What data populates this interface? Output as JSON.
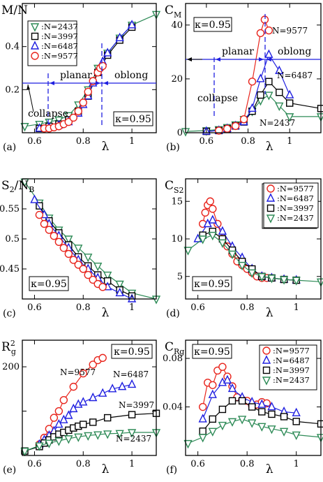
{
  "colors": {
    "2437": "#2e8b57",
    "3997": "#000000",
    "6487": "#1f1fe0",
    "9577": "#e8241c",
    "guide": "#1f1fe0"
  },
  "chart_data": [
    {
      "id": "a",
      "type": "line",
      "panel_label": "(a)",
      "ylabel": "M/N",
      "xlabel": "λ",
      "xlim": [
        0.55,
        1.1
      ],
      "ylim": [
        0.0,
        0.6
      ],
      "xticks": [
        0.6,
        0.8,
        1.0
      ],
      "xticklabels": [
        "0.6",
        "0.8",
        "1"
      ],
      "yticks": [
        0.2,
        0.4
      ],
      "yticklabels": [
        "0.2",
        "0.4"
      ],
      "legend": {
        "position": "top-left",
        "entries": [
          ":N=2437",
          ":N=3997",
          ":N=6487",
          ":N=9577"
        ]
      },
      "annotations": [
        "κ=0.95",
        "planar",
        "oblong",
        "collapse"
      ],
      "series": [
        {
          "name": "N=2437",
          "marker": "tri-down",
          "x": [
            0.56,
            0.62,
            0.66,
            0.7,
            0.74,
            0.78,
            0.82,
            0.86,
            0.9,
            0.95,
            1.0,
            1.1
          ],
          "y": [
            0.03,
            0.04,
            0.05,
            0.06,
            0.08,
            0.13,
            0.2,
            0.3,
            0.37,
            0.44,
            0.5,
            0.55
          ]
        },
        {
          "name": "N=3997",
          "marker": "square",
          "x": [
            0.62,
            0.66,
            0.7,
            0.74,
            0.78,
            0.82,
            0.86,
            0.9,
            0.95,
            1.0
          ],
          "y": [
            0.02,
            0.03,
            0.04,
            0.06,
            0.1,
            0.17,
            0.28,
            0.36,
            0.43,
            0.49
          ]
        },
        {
          "name": "N=6487",
          "marker": "tri-up",
          "x": [
            0.62,
            0.66,
            0.7,
            0.74,
            0.78,
            0.8,
            0.82,
            0.84,
            0.86,
            0.88,
            0.9,
            0.95,
            1.0
          ],
          "y": [
            0.02,
            0.025,
            0.035,
            0.05,
            0.09,
            0.13,
            0.17,
            0.23,
            0.29,
            0.33,
            0.37,
            0.44,
            0.5
          ]
        },
        {
          "name": "N=9577",
          "marker": "circle",
          "x": [
            0.64,
            0.66,
            0.68,
            0.7,
            0.72,
            0.74,
            0.76,
            0.78,
            0.8,
            0.82,
            0.84,
            0.86,
            0.87,
            0.88
          ],
          "y": [
            0.02,
            0.02,
            0.025,
            0.03,
            0.04,
            0.05,
            0.07,
            0.1,
            0.14,
            0.19,
            0.24,
            0.28,
            0.3,
            0.31
          ]
        }
      ]
    },
    {
      "id": "b",
      "type": "line",
      "panel_label": "(b)",
      "ylabel": "C_M",
      "xlabel": "λ",
      "xlim": [
        0.5,
        1.15
      ],
      "ylim": [
        0,
        48
      ],
      "xticks": [
        0.6,
        0.8,
        1.0
      ],
      "xticklabels": [
        "0.6",
        "0.8",
        "1"
      ],
      "yticks": [
        0,
        20,
        40
      ],
      "yticklabels": [
        "0",
        "20",
        "40"
      ],
      "annotations": [
        "κ=0.95",
        "N=9577",
        "planar",
        "oblong",
        "collapse",
        "N=6487",
        "N=2437"
      ],
      "series": [
        {
          "name": "N=2437",
          "marker": "tri-down",
          "x": [
            0.5,
            0.6,
            0.66,
            0.7,
            0.74,
            0.78,
            0.82,
            0.86,
            0.9,
            0.95,
            1.0,
            1.15
          ],
          "y": [
            0.5,
            0.8,
            1.2,
            2.0,
            3.0,
            5,
            8,
            12,
            14,
            10,
            6,
            6
          ]
        },
        {
          "name": "N=3997",
          "marker": "square",
          "x": [
            0.6,
            0.66,
            0.7,
            0.74,
            0.78,
            0.82,
            0.86,
            0.9,
            0.95,
            1.0,
            1.15
          ],
          "y": [
            0.5,
            0.8,
            1.5,
            2.5,
            4,
            8,
            14,
            19,
            15,
            11,
            9
          ]
        },
        {
          "name": "N=6487",
          "marker": "tri-up",
          "x": [
            0.6,
            0.66,
            0.7,
            0.74,
            0.78,
            0.82,
            0.86,
            0.9,
            0.95,
            1.0
          ],
          "y": [
            0.5,
            0.8,
            1.5,
            2.5,
            4,
            9,
            20,
            29,
            23,
            14
          ]
        },
        {
          "name": "N=9577",
          "marker": "circle",
          "x": [
            0.66,
            0.7,
            0.74,
            0.78,
            0.82,
            0.86,
            0.88,
            0.9
          ],
          "y": [
            0.8,
            1.5,
            2.5,
            5,
            19,
            37,
            42,
            38
          ]
        }
      ]
    },
    {
      "id": "c",
      "type": "line",
      "panel_label": "(c)",
      "ylabel": "S_2/N_B",
      "xlabel": "λ",
      "xlim": [
        0.55,
        1.1
      ],
      "ylim": [
        0.4,
        0.6
      ],
      "xticks": [
        0.6,
        0.8,
        1.0
      ],
      "xticklabels": [
        "0.6",
        "0.8",
        "1"
      ],
      "yticks": [
        0.45,
        0.5,
        0.55
      ],
      "yticklabels": [
        "0.45",
        "0.5",
        "0.55"
      ],
      "legend": {
        "position": "top-right",
        "entries": [
          ":N=2437",
          ":N=3997",
          ":N=6487",
          ":N=9577"
        ]
      },
      "annotations": [
        "κ=0.95"
      ],
      "series": [
        {
          "name": "N=2437",
          "marker": "tri-down",
          "x": [
            0.56,
            0.62,
            0.66,
            0.7,
            0.74,
            0.78,
            0.82,
            0.86,
            0.9,
            0.95,
            1.0,
            1.1
          ],
          "y": [
            0.595,
            0.56,
            0.535,
            0.515,
            0.5,
            0.485,
            0.47,
            0.455,
            0.44,
            0.425,
            0.41,
            0.4
          ]
        },
        {
          "name": "N=3997",
          "marker": "square",
          "x": [
            0.62,
            0.66,
            0.7,
            0.74,
            0.78,
            0.82,
            0.86,
            0.9,
            0.95,
            1.0
          ],
          "y": [
            0.555,
            0.53,
            0.51,
            0.49,
            0.47,
            0.455,
            0.44,
            0.43,
            0.415,
            0.405
          ]
        },
        {
          "name": "N=6487",
          "marker": "tri-up",
          "x": [
            0.6,
            0.64,
            0.66,
            0.7,
            0.74,
            0.78,
            0.82,
            0.86,
            0.9,
            0.95,
            1.0
          ],
          "y": [
            0.565,
            0.54,
            0.525,
            0.505,
            0.485,
            0.465,
            0.45,
            0.435,
            0.42,
            0.41,
            0.4
          ]
        },
        {
          "name": "N=9577",
          "marker": "circle",
          "x": [
            0.62,
            0.64,
            0.66,
            0.68,
            0.7,
            0.72,
            0.74,
            0.76,
            0.78,
            0.8,
            0.82,
            0.84,
            0.86,
            0.88
          ],
          "y": [
            0.54,
            0.525,
            0.515,
            0.505,
            0.495,
            0.485,
            0.475,
            0.465,
            0.457,
            0.45,
            0.44,
            0.432,
            0.425,
            0.42
          ]
        }
      ]
    },
    {
      "id": "d",
      "type": "line",
      "panel_label": "(d)",
      "ylabel": "C_S2",
      "xlabel": "λ",
      "xlim": [
        0.55,
        1.1
      ],
      "ylim": [
        2,
        18
      ],
      "xticks": [
        0.6,
        0.8,
        1.0
      ],
      "xticklabels": [
        "0.6",
        "0.8",
        "1"
      ],
      "yticks": [
        5,
        10,
        15
      ],
      "yticklabels": [
        "5",
        "10",
        "15"
      ],
      "legend": {
        "position": "top-right",
        "entries": [
          ":N=9577",
          ":N=6487",
          ":N=3997",
          ":N=2437"
        ]
      },
      "annotations": [
        "κ=0.95"
      ],
      "series": [
        {
          "name": "N=9577",
          "marker": "circle",
          "x": [
            0.62,
            0.63,
            0.64,
            0.65,
            0.66,
            0.68,
            0.7,
            0.72,
            0.74,
            0.76,
            0.78,
            0.8,
            0.82,
            0.84,
            0.86,
            0.88
          ],
          "y": [
            12,
            13.5,
            14.5,
            15,
            14,
            12,
            10,
            9,
            8,
            7,
            6.5,
            6,
            5.5,
            5,
            4.8,
            4.8
          ]
        },
        {
          "name": "N=6487",
          "marker": "tri-up",
          "x": [
            0.6,
            0.64,
            0.66,
            0.7,
            0.74,
            0.78,
            0.82,
            0.86,
            0.9,
            0.95,
            1.0
          ],
          "y": [
            10,
            12,
            12.5,
            11,
            9,
            7.5,
            6,
            5,
            4.8,
            4.6,
            4.5
          ]
        },
        {
          "name": "N=3997",
          "marker": "square",
          "x": [
            0.62,
            0.66,
            0.7,
            0.74,
            0.78,
            0.82,
            0.86,
            0.9,
            0.95,
            1.0
          ],
          "y": [
            10.5,
            11,
            10,
            8.5,
            7,
            6,
            5,
            4.8,
            4.6,
            4.5
          ]
        },
        {
          "name": "N=2437",
          "marker": "tri-down",
          "x": [
            0.56,
            0.62,
            0.66,
            0.7,
            0.74,
            0.78,
            0.82,
            0.86,
            0.9,
            0.95,
            1.0,
            1.1
          ],
          "y": [
            8.5,
            10,
            10.5,
            9.5,
            8,
            6.5,
            5.5,
            5,
            4.8,
            4.6,
            4.5,
            4.3
          ]
        }
      ]
    },
    {
      "id": "e",
      "type": "line",
      "panel_label": "(e)",
      "ylabel": "R_g^2",
      "xlabel": "λ",
      "xlim": [
        0.55,
        1.1
      ],
      "ylim": [
        0,
        260
      ],
      "xticks": [
        0.6,
        0.8,
        1.0
      ],
      "xticklabels": [
        "0.6",
        "0.8",
        "1"
      ],
      "yticks": [
        100,
        200
      ],
      "yticklabels": [
        "",
        "200"
      ],
      "annotations": [
        "κ=0.95",
        "N=9577",
        "N=6487",
        "N=3997",
        "N=2437"
      ],
      "series": [
        {
          "name": "N=9577",
          "marker": "circle",
          "x": [
            0.62,
            0.64,
            0.66,
            0.68,
            0.7,
            0.72,
            0.76,
            0.8,
            0.84,
            0.86,
            0.88
          ],
          "y": [
            25,
            40,
            60,
            85,
            100,
            125,
            155,
            185,
            205,
            215,
            220
          ]
        },
        {
          "name": "N=6487",
          "marker": "tri-up",
          "x": [
            0.62,
            0.64,
            0.66,
            0.68,
            0.7,
            0.72,
            0.74,
            0.76,
            0.78,
            0.8,
            0.84,
            0.88,
            0.92,
            0.96,
            1.0
          ],
          "y": [
            25,
            35,
            45,
            55,
            70,
            80,
            90,
            105,
            115,
            120,
            130,
            140,
            150,
            155,
            160
          ]
        },
        {
          "name": "N=3997",
          "marker": "square",
          "x": [
            0.56,
            0.62,
            0.64,
            0.66,
            0.68,
            0.7,
            0.72,
            0.74,
            0.76,
            0.78,
            0.8,
            0.84,
            0.9,
            1.0,
            1.1
          ],
          "y": [
            10,
            20,
            28,
            35,
            42,
            48,
            52,
            57,
            62,
            66,
            70,
            75,
            85,
            92,
            95
          ]
        },
        {
          "name": "N=2437",
          "marker": "tri-down",
          "x": [
            0.56,
            0.62,
            0.66,
            0.7,
            0.74,
            0.78,
            0.82,
            0.86,
            0.9,
            0.95,
            1.0,
            1.1
          ],
          "y": [
            10,
            22,
            28,
            33,
            38,
            42,
            45,
            47,
            49,
            50,
            52,
            52
          ]
        }
      ]
    },
    {
      "id": "f",
      "type": "line",
      "panel_label": "(f)",
      "ylabel": "C_Rg",
      "xlabel": "λ",
      "xlim": [
        0.55,
        1.1
      ],
      "ylim": [
        0.0,
        0.095
      ],
      "xticks": [
        0.6,
        0.8,
        1.0
      ],
      "xticklabels": [
        "0.6",
        "0.8",
        "1"
      ],
      "yticks": [
        0.04,
        0.08
      ],
      "yticklabels": [
        "0.04",
        "0.08"
      ],
      "legend": {
        "position": "top-right",
        "entries": [
          ":N=9577",
          ":N=6487",
          ":N=3997",
          ":N=2437"
        ]
      },
      "annotations": [
        "κ=0.95"
      ],
      "series": [
        {
          "name": "N=9577",
          "marker": "circle",
          "x": [
            0.62,
            0.64,
            0.66,
            0.68,
            0.7,
            0.72,
            0.74,
            0.76,
            0.78,
            0.8,
            0.82,
            0.84,
            0.86,
            0.88
          ],
          "y": [
            0.04,
            0.06,
            0.058,
            0.07,
            0.073,
            0.065,
            0.057,
            0.048,
            0.046,
            0.045,
            0.041,
            0.042,
            0.044,
            0.043
          ]
        },
        {
          "name": "N=6487",
          "marker": "tri-up",
          "x": [
            0.62,
            0.66,
            0.7,
            0.72,
            0.74,
            0.78,
            0.82,
            0.86,
            0.9,
            0.95,
            1.0
          ],
          "y": [
            0.03,
            0.05,
            0.06,
            0.062,
            0.055,
            0.048,
            0.044,
            0.042,
            0.04,
            0.036,
            0.035
          ]
        },
        {
          "name": "N=3997",
          "marker": "square",
          "x": [
            0.62,
            0.66,
            0.7,
            0.74,
            0.78,
            0.82,
            0.86,
            0.9,
            0.95,
            1.0,
            1.1
          ],
          "y": [
            0.02,
            0.03,
            0.038,
            0.045,
            0.045,
            0.04,
            0.036,
            0.034,
            0.032,
            0.028,
            0.026
          ]
        },
        {
          "name": "N=2437",
          "marker": "tri-down",
          "x": [
            0.56,
            0.62,
            0.66,
            0.7,
            0.74,
            0.78,
            0.82,
            0.86,
            0.9,
            0.95,
            1.0,
            1.1
          ],
          "y": [
            0.01,
            0.015,
            0.02,
            0.025,
            0.028,
            0.03,
            0.027,
            0.024,
            0.022,
            0.02,
            0.017,
            0.015
          ]
        }
      ]
    }
  ]
}
